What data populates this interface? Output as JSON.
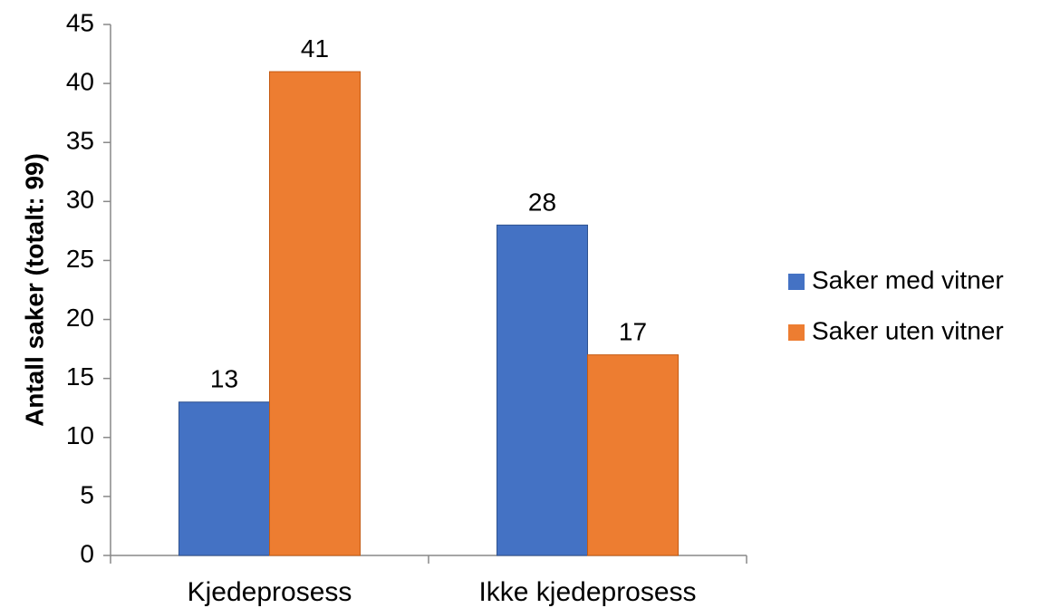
{
  "chart_data": {
    "type": "bar",
    "categories": [
      "Kjedeprosess",
      "Ikke kjedeprosess"
    ],
    "series": [
      {
        "name": "Saker med vitner",
        "values": [
          13,
          28
        ],
        "color": "#4472C4"
      },
      {
        "name": "Saker uten vitner",
        "values": [
          41,
          17
        ],
        "color": "#ED7D31"
      }
    ],
    "title": "",
    "xlabel": "",
    "ylabel": "Antall saker (totalt: 99)",
    "ylim": [
      0,
      45
    ],
    "yticks": [
      0,
      5,
      10,
      15,
      20,
      25,
      30,
      35,
      40,
      45
    ],
    "grid": false,
    "legend_position": "right",
    "show_data_labels": true
  }
}
